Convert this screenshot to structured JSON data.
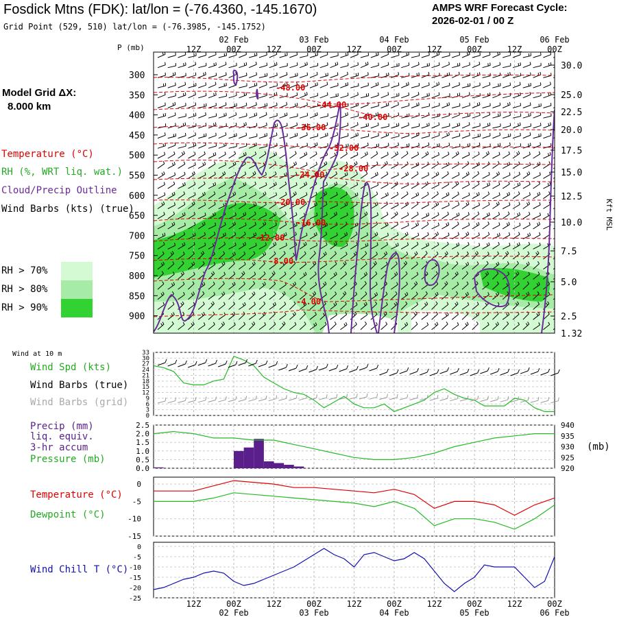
{
  "header": {
    "title": "Fosdick Mtns (FDK):  lat/lon = (-76.4360, -145.1670)",
    "grid_point": "Grid Point (529, 510) lat/lon = (-76.3985, -145.1752)",
    "cycle_line1": "AMPS WRF Forecast Cycle:",
    "cycle_line2": "2026-02-01 / 00  Z"
  },
  "legend": {
    "model_grid_line1": "Model Grid ΔX:",
    "model_grid_line2": "8.000 km",
    "temperature": "Temperature (°C)",
    "rh": "RH (%, WRT liq. wat.)",
    "cloud": "Cloud/Precip Outline",
    "wind": "Wind Barbs (kts) (true)",
    "rh70": "RH > 70%",
    "rh80": "RH > 80%",
    "rh90": "RH > 90%",
    "colors": {
      "rh70": "#d4fad4",
      "rh80": "#a6eba6",
      "rh90": "#32d232",
      "temp": "#e00000",
      "cloud": "#6a2a9a"
    }
  },
  "time_axis": {
    "top_ticks": [
      "12Z",
      "00Z",
      "12Z",
      "00Z",
      "12Z",
      "00Z",
      "12Z",
      "00Z",
      "12Z",
      "00Z"
    ],
    "day_labels": [
      "02 Feb",
      "03 Feb",
      "04 Feb",
      "05 Feb",
      "06 Feb"
    ]
  },
  "sounding": {
    "p_header": "P (mb)",
    "pressure_ticks": [
      "300",
      "350",
      "400",
      "450",
      "500",
      "550",
      "600",
      "650",
      "700",
      "750",
      "800",
      "850",
      "900"
    ],
    "height_ticks": [
      "30.0",
      "25.0",
      "22.5",
      "20.0",
      "17.5",
      "15.0",
      "12.5",
      "10.0",
      "7.5",
      "5.0",
      "2.5",
      "1.32"
    ],
    "height_axis_label": "Kft MSL",
    "temp_labels": [
      "-48.00",
      "-44.00",
      "-40.00",
      "-36.00",
      "-32.00",
      "-28.00",
      "-24.00",
      "-20.00",
      "-16.00",
      "-12.00",
      "-8.00",
      "-4.00"
    ]
  },
  "panels": {
    "wind_title": "Wind at 10 m",
    "wind_spd": "Wind Spd (kts)",
    "wind_barbs_true": "Wind Barbs (true)",
    "wind_barbs_grid": "Wind Barbs (grid)",
    "wind_yticks": [
      "33",
      "30",
      "27",
      "24",
      "21",
      "18",
      "15",
      "12",
      "9",
      "6",
      "3",
      "0"
    ],
    "precip_l1": "Precip (mm)",
    "precip_l2": "liq. equiv.",
    "precip_l3": "3-hr accum",
    "pressure": "Pressure (mb)",
    "precip_yticks": [
      "2.5",
      "2.0",
      "1.5",
      "1.0",
      "0.5",
      "0.0"
    ],
    "pressure_yticks": [
      "940",
      "935",
      "930",
      "925",
      "920"
    ],
    "pressure_unit": "(mb)",
    "temperature": "Temperature (°C)",
    "dewpoint": "Dewpoint (°C)",
    "temp_yticks": [
      "0",
      "-5",
      "-10",
      "-15"
    ],
    "windchill": "Wind Chill T (°C)",
    "wc_yticks": [
      "0",
      "-5",
      "-10",
      "-15",
      "-20",
      "-25"
    ],
    "colors": {
      "wind": "#22bb22",
      "precip": "#5a1f8a",
      "pressure": "#22bb22",
      "temp": "#e00000",
      "dew": "#22bb22",
      "windchill": "#1010b0"
    }
  },
  "chart_data": [
    {
      "type": "line",
      "title": "Wind at 10 m",
      "ylabel": "Wind Spd (kts)",
      "x_hours": [
        0,
        3,
        6,
        9,
        12,
        15,
        18,
        21,
        24,
        27,
        30,
        33,
        36,
        39,
        42,
        45,
        48,
        51,
        54,
        57,
        60,
        63,
        66,
        69,
        72,
        75,
        78,
        81,
        84,
        87,
        90,
        93,
        96,
        99,
        102,
        105,
        108,
        111,
        114,
        117,
        120
      ],
      "ylim": [
        0,
        33
      ],
      "series": [
        {
          "name": "Wind Spd (kts)",
          "values": [
            26,
            25,
            23,
            17,
            16,
            16,
            18,
            19,
            31,
            29,
            26,
            20,
            17,
            14,
            12,
            11,
            8,
            4,
            7,
            10,
            6,
            4,
            4,
            6,
            2,
            4,
            6,
            8,
            12,
            14,
            11,
            9,
            8,
            5,
            5,
            5,
            9,
            8,
            4,
            2,
            2
          ]
        }
      ]
    },
    {
      "type": "bar",
      "title": "Precip (mm) liq. equiv. 3-hr accum",
      "x_hours": [
        0,
        3,
        6,
        9,
        12,
        15,
        18,
        21,
        24,
        27,
        30,
        33,
        36,
        39,
        42,
        45
      ],
      "ylim": [
        0,
        2.5
      ],
      "values": [
        0.05,
        0.0,
        0.0,
        0.0,
        0.0,
        0.0,
        0.0,
        0.0,
        1.0,
        1.2,
        1.7,
        0.4,
        0.3,
        0.2,
        0.1,
        0.0
      ]
    },
    {
      "type": "line",
      "title": "Pressure (mb)",
      "x_hours": [
        0,
        6,
        12,
        18,
        24,
        30,
        36,
        42,
        48,
        54,
        60,
        66,
        72,
        78,
        84,
        90,
        96,
        102,
        108,
        114,
        120
      ],
      "ylim": [
        920,
        940
      ],
      "series": [
        {
          "name": "Pressure (mb)",
          "values": [
            936,
            937,
            936,
            934,
            934,
            933,
            933,
            931,
            929,
            927,
            925,
            924,
            924,
            925,
            927,
            930,
            932,
            934,
            935,
            936,
            936
          ]
        }
      ]
    },
    {
      "type": "line",
      "title": "Temperature / Dewpoint",
      "x_hours": [
        0,
        6,
        12,
        18,
        24,
        30,
        36,
        42,
        48,
        54,
        60,
        66,
        72,
        78,
        84,
        90,
        96,
        102,
        108,
        114,
        120
      ],
      "ylim": [
        -15,
        2
      ],
      "series": [
        {
          "name": "Temperature (°C)",
          "values": [
            -2,
            -2,
            -2,
            -0.5,
            1,
            0.5,
            0,
            -1,
            -1,
            -1.5,
            -2,
            -2.5,
            -1.5,
            -3,
            -7,
            -5,
            -5,
            -6,
            -9,
            -6,
            -4
          ]
        },
        {
          "name": "Dewpoint (°C)",
          "values": [
            -5,
            -5,
            -5,
            -4,
            -2.5,
            -3,
            -3.5,
            -4,
            -4.5,
            -5,
            -5.5,
            -6.5,
            -5,
            -7,
            -12,
            -10,
            -10,
            -11,
            -13,
            -10,
            -6
          ]
        }
      ]
    },
    {
      "type": "line",
      "title": "Wind Chill T (°C)",
      "x_hours": [
        0,
        3,
        6,
        9,
        12,
        15,
        18,
        21,
        24,
        27,
        30,
        33,
        36,
        39,
        42,
        45,
        48,
        51,
        54,
        57,
        60,
        63,
        66,
        69,
        72,
        75,
        78,
        81,
        84,
        87,
        90,
        93,
        96,
        99,
        102,
        105,
        108,
        111,
        114,
        117,
        120
      ],
      "ylim": [
        -25,
        0
      ],
      "series": [
        {
          "name": "Wind Chill T (°C)",
          "values": [
            -21,
            -20,
            -18,
            -16,
            -15,
            -13,
            -12,
            -13,
            -17,
            -19,
            -18,
            -16,
            -14,
            -12,
            -10,
            -7,
            -4,
            -1,
            -4,
            -6,
            -10,
            -4,
            -3,
            -5,
            -7,
            -6,
            -3,
            -6,
            -12,
            -18,
            -22,
            -18,
            -15,
            -9,
            -10,
            -10,
            -10,
            -15,
            -20,
            -17,
            -5
          ]
        }
      ]
    }
  ]
}
